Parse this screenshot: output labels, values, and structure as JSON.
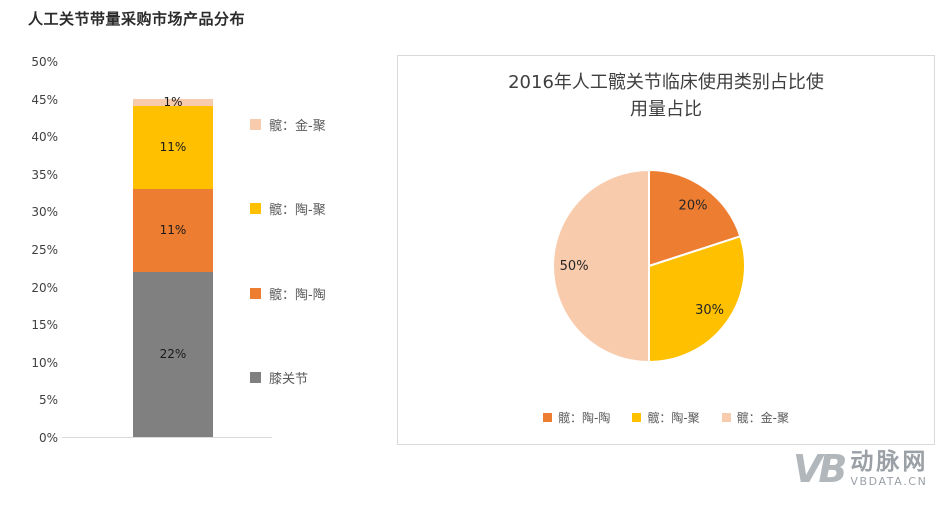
{
  "page": {
    "background": "#ffffff"
  },
  "chart_data": [
    {
      "type": "bar",
      "subtype": "stacked-column",
      "title": "人工关节带量采购市场产品分布",
      "categories": [
        ""
      ],
      "series": [
        {
          "name": "膝关节",
          "values": [
            22
          ],
          "color": "#808080",
          "data_label": "22%"
        },
        {
          "name": "髋：陶-陶",
          "values": [
            11
          ],
          "color": "#ed7d31",
          "data_label": "11%"
        },
        {
          "name": "髋：陶-聚",
          "values": [
            11
          ],
          "color": "#ffc000",
          "data_label": "11%"
        },
        {
          "name": "髋：金-聚",
          "values": [
            1
          ],
          "color": "#f8cbad",
          "data_label": "1%"
        }
      ],
      "ylim": [
        0,
        50
      ],
      "y_tick_labels": [
        "0%",
        "5%",
        "10%",
        "15%",
        "20%",
        "25%",
        "30%",
        "35%",
        "40%",
        "45%",
        "50%"
      ],
      "grid": false,
      "legend_position": "right",
      "legend": [
        {
          "label": "髋：金-聚",
          "color": "#f8cbad"
        },
        {
          "label": "髋：陶-聚",
          "color": "#ffc000"
        },
        {
          "label": "髋：陶-陶",
          "color": "#ed7d31"
        },
        {
          "label": "膝关节",
          "color": "#808080"
        }
      ]
    },
    {
      "type": "pie",
      "title": "2016年人工髋关节临床使用类别占比使用量占比",
      "labels": [
        "髋：陶-陶",
        "髋：陶-聚",
        "髋：金-聚"
      ],
      "values": [
        20,
        30,
        50
      ],
      "data_labels": [
        "20%",
        "30%",
        "50%"
      ],
      "colors": [
        "#ed7d31",
        "#ffc000",
        "#f8cbad"
      ],
      "start_angle_deg": 0,
      "direction": "clockwise",
      "legend_position": "bottom",
      "legend": [
        {
          "label": "髋：陶-陶",
          "color": "#ed7d31"
        },
        {
          "label": "髋：陶-聚",
          "color": "#ffc000"
        },
        {
          "label": "髋：金-聚",
          "color": "#f8cbad"
        }
      ]
    }
  ],
  "watermark": {
    "mark": "VB",
    "brand": "动脉网",
    "domain": "VBDATA.CN"
  }
}
